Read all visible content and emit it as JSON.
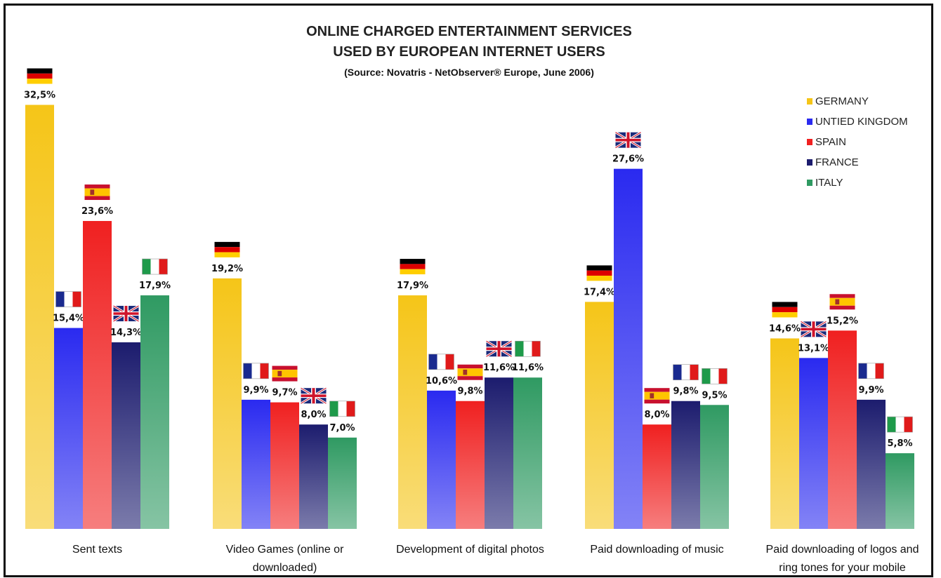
{
  "chart_data": {
    "type": "bar",
    "title": [
      "ONLINE CHARGED ENTERTAINMENT SERVICES",
      "USED BY EUROPEAN INTERNET USERS"
    ],
    "subtitle": "(Source:  Novatris - NetObserver® Europe, June 2006)",
    "categories": [
      [
        "Sent texts"
      ],
      [
        "Video Games (online or",
        "downloaded)"
      ],
      [
        "Development of digital photos"
      ],
      [
        "Paid downloading of music"
      ],
      [
        "Paid downloading of logos and",
        "ring tones for your mobile"
      ]
    ],
    "series": [
      {
        "name": "GERMANY",
        "color": "#f5c518",
        "flag": "germany-flag",
        "values": [
          32.5,
          19.2,
          17.9,
          17.4,
          14.6
        ],
        "labels": [
          "32,5%",
          "19,2%",
          "17,9%",
          "17,4%",
          "14,6%"
        ]
      },
      {
        "name": "UNTIED KINGDOM",
        "color": "#2a2af0",
        "flag": "uk-flag",
        "values": [
          15.4,
          9.9,
          10.6,
          27.6,
          13.1
        ],
        "labels": [
          "15,4%",
          "9,9%",
          "10,6%",
          "27,6%",
          "13,1%"
        ]
      },
      {
        "name": "SPAIN",
        "color": "#f02020",
        "flag": "spain-flag",
        "values": [
          23.6,
          9.7,
          9.8,
          8.0,
          15.2
        ],
        "labels": [
          "23,6%",
          "9,7%",
          "9,8%",
          "8,0%",
          "15,2%"
        ]
      },
      {
        "name": "FRANCE",
        "color": "#1c1c6e",
        "flag": "france-flag",
        "values": [
          14.3,
          8.0,
          11.6,
          9.8,
          9.9
        ],
        "labels": [
          "14,3%",
          "8,0%",
          "11,6%",
          "9,8%",
          "9,9%"
        ]
      },
      {
        "name": "ITALY",
        "color": "#2f9a62",
        "flag": "italy-flag",
        "values": [
          17.9,
          7.0,
          11.6,
          9.5,
          5.8
        ],
        "labels": [
          "17,9%",
          "7,0%",
          "11,6%",
          "9,5%",
          "5,8%"
        ]
      }
    ],
    "bar_flags": [
      [
        "germany-flag",
        "france-flag",
        "spain-flag",
        "uk-flag",
        "italy-flag"
      ],
      [
        "germany-flag",
        "france-flag",
        "spain-flag",
        "uk-flag",
        "italy-flag"
      ],
      [
        "germany-flag",
        "france-flag",
        "spain-flag",
        "uk-flag",
        "italy-flag"
      ],
      [
        "germany-flag",
        "uk-flag",
        "spain-flag",
        "france-flag",
        "italy-flag"
      ],
      [
        "germany-flag",
        "uk-flag",
        "spain-flag",
        "france-flag",
        "italy-flag"
      ]
    ],
    "ylim": [
      0,
      35
    ],
    "grid": false,
    "legend_position": "top-right"
  }
}
